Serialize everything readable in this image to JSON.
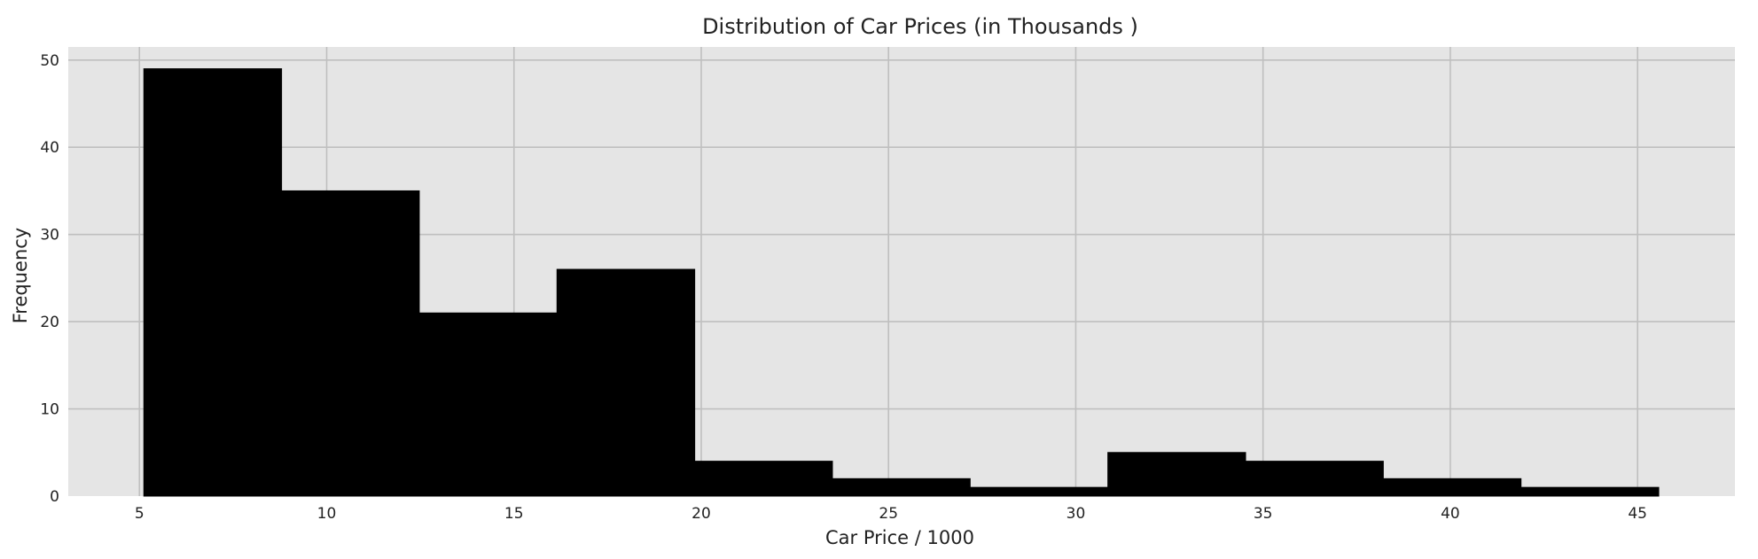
{
  "chart_data": {
    "type": "bar",
    "title": "Distribution of Car Prices (in Thousands )",
    "xlabel": "Car Price / 1000",
    "ylabel": "Frequency",
    "bin_edges": [
      5.118,
      8.795,
      12.472,
      16.149,
      19.826,
      23.503,
      27.18,
      30.857,
      34.534,
      38.211,
      41.888,
      45.565
    ],
    "values": [
      49,
      35,
      21,
      26,
      4,
      2,
      1,
      5,
      4,
      2,
      1
    ],
    "xlim": [
      3.1,
      47.6
    ],
    "ylim": [
      0,
      51.5
    ],
    "xticks": [
      5,
      10,
      15,
      20,
      25,
      30,
      35,
      40,
      45
    ],
    "yticks": [
      0,
      10,
      20,
      30,
      40,
      50
    ],
    "grid": true,
    "colors": {
      "bar": "#000000",
      "background": "#e5e5e5",
      "grid": "#bfbfbf"
    }
  }
}
